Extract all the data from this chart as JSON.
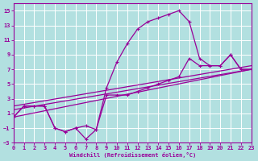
{
  "background_color": "#b2e0e0",
  "grid_color": "#ffffff",
  "line_color": "#990099",
  "xlabel": "Windchill (Refroidissement éolien,°C)",
  "xlim": [
    0,
    23
  ],
  "ylim": [
    -3,
    16
  ],
  "xticks": [
    0,
    1,
    2,
    3,
    4,
    5,
    6,
    7,
    8,
    9,
    10,
    11,
    12,
    13,
    14,
    15,
    16,
    17,
    18,
    19,
    20,
    21,
    22,
    23
  ],
  "yticks": [
    -3,
    -1,
    1,
    3,
    5,
    7,
    9,
    11,
    13,
    15
  ],
  "curve1_x": [
    0,
    1,
    2,
    3,
    4,
    5,
    6,
    7,
    8,
    9,
    10,
    11,
    12,
    13,
    14,
    15,
    16,
    17,
    18,
    19,
    20,
    21,
    22,
    23
  ],
  "curve1_y": [
    0.5,
    2.0,
    2.0,
    2.0,
    -1.0,
    -1.5,
    -1.0,
    -0.7,
    -1.2,
    4.5,
    8.0,
    10.5,
    12.5,
    13.5,
    14.0,
    14.5,
    15.0,
    13.5,
    8.5,
    7.5,
    7.5,
    9.0,
    7.0,
    7.0
  ],
  "curve2_x": [
    0,
    1,
    2,
    3,
    4,
    5,
    6,
    7,
    8,
    9,
    10,
    11,
    12,
    13,
    14,
    15,
    16,
    17,
    18,
    19,
    20,
    21,
    22,
    23
  ],
  "curve2_y": [
    0.5,
    2.0,
    2.0,
    2.0,
    -1.0,
    -1.5,
    -1.0,
    -2.5,
    -1.2,
    3.5,
    3.5,
    3.5,
    4.0,
    4.5,
    5.0,
    5.5,
    6.0,
    8.5,
    7.5,
    7.5,
    7.5,
    9.0,
    7.0,
    7.0
  ],
  "line3_x": [
    0,
    23
  ],
  "line3_y": [
    0.5,
    7.0
  ],
  "line4_x": [
    0,
    23
  ],
  "line4_y": [
    1.5,
    7.0
  ],
  "line5_x": [
    0,
    23
  ],
  "line5_y": [
    2.0,
    7.5
  ]
}
